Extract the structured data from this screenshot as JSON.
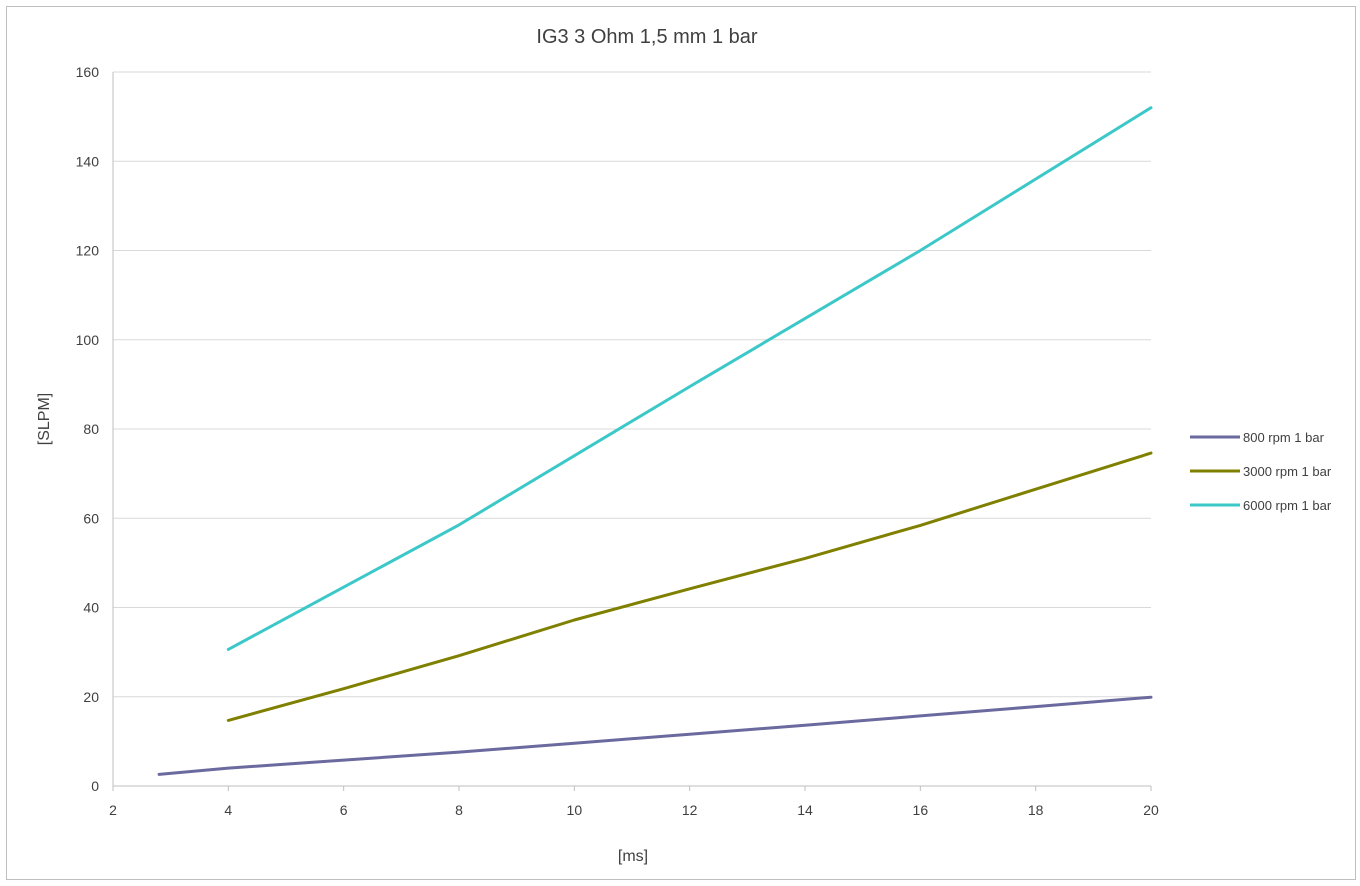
{
  "chart_data": {
    "type": "line",
    "title": "IG3 3 Ohm 1,5 mm 1 bar",
    "xlabel": "[ms]",
    "ylabel": "[SLPM]",
    "xlim": [
      2,
      20
    ],
    "ylim": [
      0,
      160
    ],
    "xticks": [
      "2",
      "4",
      "6",
      "8",
      "10",
      "12",
      "14",
      "16",
      "18",
      "20"
    ],
    "yticks": [
      "0",
      "20",
      "40",
      "60",
      "80",
      "100",
      "120",
      "140",
      "160"
    ],
    "grid": "horizontal",
    "legend_position": "right",
    "series": [
      {
        "name": "800 rpm 1 bar",
        "color": "#6a6a9e",
        "points": [
          [
            2.8,
            2.6
          ],
          [
            4,
            4.0
          ],
          [
            6,
            5.8
          ],
          [
            8,
            7.6
          ],
          [
            10,
            9.6
          ],
          [
            12,
            11.6
          ],
          [
            14,
            13.6
          ],
          [
            16,
            15.7
          ],
          [
            18,
            17.8
          ],
          [
            20,
            19.9
          ]
        ]
      },
      {
        "name": "3000 rpm 1 bar",
        "color": "#808000",
        "points": [
          [
            4,
            14.7
          ],
          [
            6,
            21.8
          ],
          [
            8,
            29.2
          ],
          [
            10,
            37.2
          ],
          [
            12,
            44.2
          ],
          [
            14,
            51.0
          ],
          [
            16,
            58.4
          ],
          [
            18,
            66.5
          ],
          [
            20,
            74.6
          ]
        ]
      },
      {
        "name": "6000 rpm 1 bar",
        "color": "#3cc8c8",
        "points": [
          [
            4,
            30.6
          ],
          [
            8,
            58.5
          ],
          [
            12,
            89.5
          ],
          [
            16,
            120.0
          ],
          [
            20,
            152.0
          ]
        ]
      }
    ]
  }
}
